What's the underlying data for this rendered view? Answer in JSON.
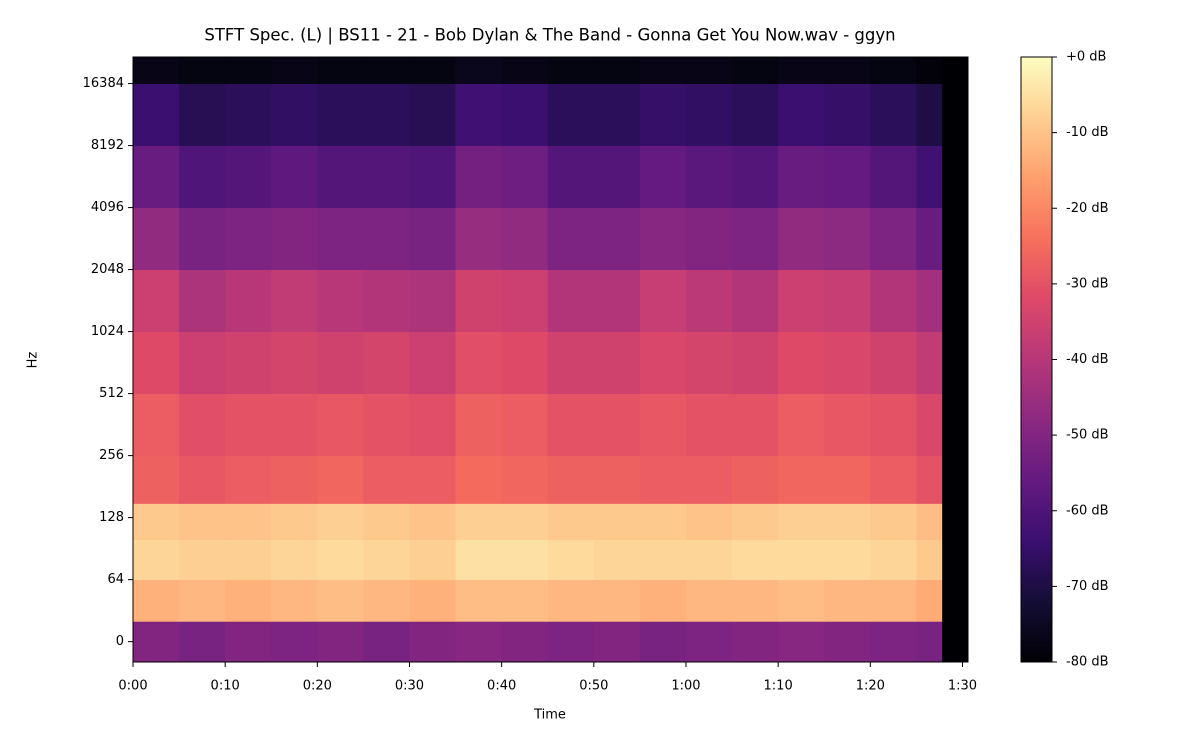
{
  "chart_data": {
    "type": "spectrogram",
    "title": "STFT Spec. (L) | BS11 - 21 - Bob Dylan & The Band - Gonna Get You Now.wav - ggyn",
    "xlabel": "Time",
    "ylabel": "Hz",
    "xlim": [
      0,
      90.6
    ],
    "xticks": [
      {
        "value": 0,
        "label": "0:00"
      },
      {
        "value": 10,
        "label": "0:10"
      },
      {
        "value": 20,
        "label": "0:20"
      },
      {
        "value": 30,
        "label": "0:30"
      },
      {
        "value": 40,
        "label": "0:40"
      },
      {
        "value": 50,
        "label": "0:50"
      },
      {
        "value": 60,
        "label": "1:00"
      },
      {
        "value": 70,
        "label": "1:10"
      },
      {
        "value": 80,
        "label": "1:20"
      },
      {
        "value": 90,
        "label": "1:30"
      }
    ],
    "yscale": "symlog",
    "y_linthresh": 64,
    "ylim": [
      -21,
      22050
    ],
    "yticks": [
      0,
      64,
      128,
      256,
      512,
      1024,
      2048,
      4096,
      8192,
      16384
    ],
    "time_bins": [
      0,
      5,
      10,
      15,
      20,
      25,
      30,
      35,
      40,
      45,
      50,
      55,
      60,
      65,
      70,
      75,
      80,
      85,
      87.8,
      90.6
    ],
    "freq_bins": [
      -21,
      21,
      64,
      100,
      150,
      256,
      512,
      1024,
      2048,
      4096,
      8192,
      16384,
      22050
    ],
    "z": [
      [
        -50,
        -52,
        -50,
        -51,
        -50,
        -52,
        -50,
        -49,
        -50,
        -51,
        -50,
        -52,
        -51,
        -50,
        -49,
        -50,
        -51,
        -52,
        -80
      ],
      [
        -13,
        -12,
        -13,
        -12,
        -11,
        -12,
        -13,
        -11,
        -11,
        -12,
        -12,
        -13,
        -12,
        -12,
        -11,
        -12,
        -12,
        -14,
        -80
      ],
      [
        -7,
        -8,
        -8,
        -7,
        -6,
        -7,
        -8,
        -5,
        -5,
        -6,
        -7,
        -7,
        -7,
        -6,
        -6,
        -6,
        -7,
        -9,
        -80
      ],
      [
        -9,
        -10,
        -10,
        -9,
        -8,
        -9,
        -10,
        -8,
        -8,
        -9,
        -9,
        -9,
        -10,
        -9,
        -8,
        -8,
        -9,
        -11,
        -80
      ],
      [
        -27,
        -29,
        -28,
        -27,
        -26,
        -28,
        -28,
        -25,
        -26,
        -27,
        -27,
        -28,
        -28,
        -27,
        -26,
        -26,
        -28,
        -30,
        -80
      ],
      [
        -28,
        -31,
        -30,
        -30,
        -29,
        -30,
        -31,
        -27,
        -28,
        -30,
        -30,
        -29,
        -30,
        -30,
        -28,
        -29,
        -30,
        -33,
        -80
      ],
      [
        -32,
        -36,
        -35,
        -34,
        -35,
        -34,
        -36,
        -31,
        -32,
        -35,
        -35,
        -33,
        -34,
        -35,
        -32,
        -33,
        -35,
        -38,
        -80
      ],
      [
        -36,
        -42,
        -40,
        -38,
        -40,
        -41,
        -42,
        -35,
        -36,
        -41,
        -41,
        -37,
        -39,
        -41,
        -36,
        -37,
        -41,
        -44,
        -80
      ],
      [
        -47,
        -52,
        -51,
        -50,
        -51,
        -51,
        -52,
        -46,
        -47,
        -51,
        -51,
        -49,
        -50,
        -51,
        -47,
        -48,
        -51,
        -55,
        -80
      ],
      [
        -55,
        -60,
        -59,
        -57,
        -59,
        -59,
        -60,
        -53,
        -54,
        -59,
        -59,
        -56,
        -58,
        -59,
        -55,
        -56,
        -59,
        -63,
        -80
      ],
      [
        -64,
        -68,
        -67,
        -66,
        -67,
        -67,
        -68,
        -63,
        -64,
        -67,
        -67,
        -65,
        -66,
        -67,
        -64,
        -65,
        -67,
        -70,
        -80
      ],
      [
        -77,
        -78,
        -78,
        -77,
        -78,
        -78,
        -78,
        -76,
        -77,
        -78,
        -78,
        -77,
        -77,
        -78,
        -77,
        -77,
        -78,
        -79,
        -80
      ]
    ],
    "zlim": [
      -80,
      0
    ],
    "zticks": [
      {
        "value": 0,
        "label": "+0 dB"
      },
      {
        "value": -10,
        "label": "-10 dB"
      },
      {
        "value": -20,
        "label": "-20 dB"
      },
      {
        "value": -30,
        "label": "-30 dB"
      },
      {
        "value": -40,
        "label": "-40 dB"
      },
      {
        "value": -50,
        "label": "-50 dB"
      },
      {
        "value": -60,
        "label": "-60 dB"
      },
      {
        "value": -70,
        "label": "-70 dB"
      },
      {
        "value": -80,
        "label": "-80 dB"
      }
    ],
    "colorscale": [
      "#000004",
      "#140e36",
      "#3b0f70",
      "#641a80",
      "#8c2981",
      "#b73779",
      "#de4968",
      "#f7705c",
      "#fe9f6d",
      "#fecf92",
      "#fcfdbf"
    ]
  }
}
